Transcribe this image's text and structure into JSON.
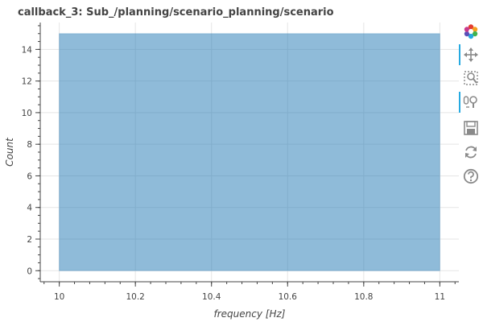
{
  "title": "callback_3: Sub_/planning/scenario_planning/scenario",
  "toolbar": {
    "tools": [
      {
        "name": "bokeh-logo-icon",
        "active": false
      },
      {
        "name": "pan-tool-icon",
        "active": true
      },
      {
        "name": "box-zoom-tool-icon",
        "active": false
      },
      {
        "name": "wheel-zoom-tool-icon",
        "active": true
      },
      {
        "name": "save-tool-icon",
        "active": false
      },
      {
        "name": "reset-tool-icon",
        "active": false
      },
      {
        "name": "help-tool-icon",
        "active": false
      }
    ]
  },
  "chart_data": {
    "type": "bar",
    "title": "callback_3: Sub_/planning/scenario_planning/scenario",
    "xlabel": "frequency [Hz]",
    "ylabel": "Count",
    "bins": [
      {
        "left": 10.0,
        "right": 11.0,
        "count": 15
      }
    ],
    "xlim": [
      9.95,
      11.05
    ],
    "ylim": [
      -0.7,
      15.7
    ],
    "xticks": [
      "10",
      "10.2",
      "10.4",
      "10.6",
      "10.8",
      "11"
    ],
    "yticks": [
      "0",
      "2",
      "4",
      "6",
      "8",
      "10",
      "12",
      "14"
    ],
    "grid": true,
    "colors": {
      "fill": "#1f77b4",
      "fill_alpha": 0.5,
      "grid": "#e5e5e5",
      "axis": "#444444"
    }
  }
}
